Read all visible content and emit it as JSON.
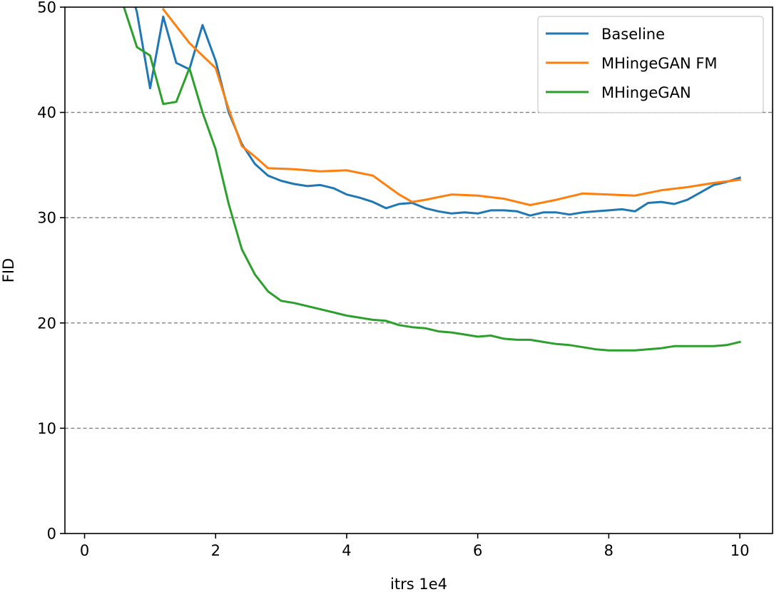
{
  "chart_data": {
    "type": "line",
    "title": "",
    "xlabel": "itrs 1e4",
    "ylabel": "FID",
    "xlim": [
      -0.3,
      10.5
    ],
    "ylim": [
      0,
      50
    ],
    "x_ticks": [
      0,
      2,
      4,
      6,
      8,
      10
    ],
    "y_ticks": [
      0,
      10,
      20,
      30,
      40,
      50
    ],
    "grid": {
      "axis": "y",
      "style": "dashed",
      "color": "#808080"
    },
    "legend": {
      "placement": "top-right"
    },
    "series": [
      {
        "name": "Baseline",
        "color": "#1f77b4",
        "x": [
          0.6,
          0.8,
          1.0,
          1.2,
          1.4,
          1.6,
          1.8,
          2.0,
          2.2,
          2.4,
          2.6,
          2.8,
          3.0,
          3.2,
          3.4,
          3.6,
          3.8,
          4.0,
          4.2,
          4.4,
          4.6,
          4.8,
          5.0,
          5.2,
          5.4,
          5.6,
          5.8,
          6.0,
          6.2,
          6.4,
          6.6,
          6.8,
          7.0,
          7.2,
          7.4,
          7.6,
          7.8,
          8.0,
          8.2,
          8.4,
          8.6,
          8.8,
          9.0,
          9.2,
          9.4,
          9.6,
          9.8,
          10.0
        ],
        "y": [
          54.0,
          49.5,
          42.3,
          49.1,
          44.7,
          44.1,
          48.3,
          44.9,
          40.0,
          37.0,
          35.1,
          34.0,
          33.5,
          33.2,
          33.0,
          33.1,
          32.8,
          32.2,
          31.9,
          31.5,
          30.9,
          31.3,
          31.4,
          30.9,
          30.6,
          30.4,
          30.5,
          30.4,
          30.7,
          30.7,
          30.6,
          30.2,
          30.5,
          30.5,
          30.3,
          30.5,
          30.6,
          30.7,
          30.8,
          30.6,
          31.4,
          31.5,
          31.3,
          31.7,
          32.4,
          33.1,
          33.4,
          33.8
        ]
      },
      {
        "name": "MHingeGAN FM",
        "color": "#ff7f0e",
        "x": [
          1.2,
          1.4,
          1.6,
          1.8,
          2.0,
          2.2,
          2.4,
          2.6,
          2.8,
          3.2,
          3.6,
          4.0,
          4.4,
          4.8,
          5.0,
          5.2,
          5.6,
          6.0,
          6.4,
          6.8,
          7.2,
          7.6,
          8.0,
          8.4,
          8.8,
          9.2,
          9.6,
          10.0
        ],
        "y": [
          49.8,
          48.2,
          46.6,
          45.4,
          44.2,
          40.3,
          36.8,
          35.8,
          34.7,
          34.6,
          34.4,
          34.5,
          34.0,
          32.2,
          31.5,
          31.7,
          32.2,
          32.1,
          31.8,
          31.2,
          31.7,
          32.3,
          32.2,
          32.1,
          32.6,
          32.9,
          33.3,
          33.6
        ]
      },
      {
        "name": "MHingeGAN",
        "color": "#2ca02c",
        "x": [
          0.6,
          0.8,
          1.0,
          1.2,
          1.4,
          1.6,
          1.8,
          2.0,
          2.2,
          2.4,
          2.6,
          2.8,
          3.0,
          3.2,
          3.4,
          3.6,
          3.8,
          4.0,
          4.2,
          4.4,
          4.6,
          4.8,
          5.0,
          5.2,
          5.4,
          5.6,
          5.8,
          6.0,
          6.2,
          6.4,
          6.6,
          6.8,
          7.0,
          7.2,
          7.4,
          7.6,
          7.8,
          8.0,
          8.2,
          8.4,
          8.6,
          8.8,
          9.0,
          9.2,
          9.4,
          9.6,
          9.8,
          10.0
        ],
        "y": [
          50.0,
          46.2,
          45.4,
          40.8,
          41.0,
          44.2,
          40.0,
          36.5,
          31.3,
          27.0,
          24.6,
          23.0,
          22.1,
          21.9,
          21.6,
          21.3,
          21.0,
          20.7,
          20.5,
          20.3,
          20.2,
          19.8,
          19.6,
          19.5,
          19.2,
          19.1,
          18.9,
          18.7,
          18.8,
          18.5,
          18.4,
          18.4,
          18.2,
          18.0,
          17.9,
          17.7,
          17.5,
          17.4,
          17.4,
          17.4,
          17.5,
          17.6,
          17.8,
          17.8,
          17.8,
          17.8,
          17.9,
          18.2
        ]
      }
    ]
  }
}
